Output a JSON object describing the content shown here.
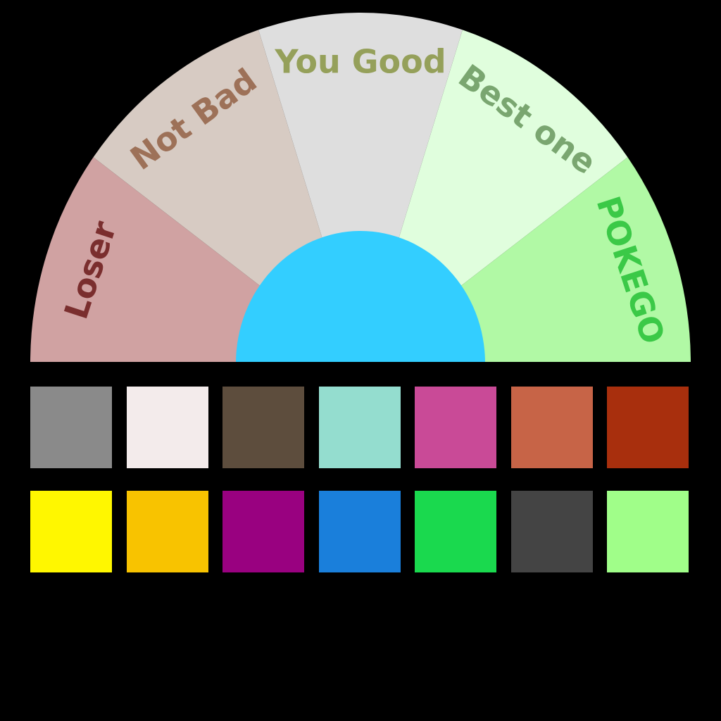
{
  "gauge": {
    "segments": [
      {
        "label": "Loser",
        "fill": "#d0a2a2",
        "text_color": "#7a2e2e"
      },
      {
        "label": "Not Bad",
        "fill": "#d7cbc3",
        "text_color": "#9d7158"
      },
      {
        "label": "You Good",
        "fill": "#dedede",
        "text_color": "#95a05a"
      },
      {
        "label": "Best one",
        "fill": "#e0fedd",
        "text_color": "#7aa670"
      },
      {
        "label": "POKEGO",
        "fill": "#b1f9a5",
        "text_color": "#3bc947"
      }
    ],
    "hub_color": "#33ceff"
  },
  "palette": {
    "rows": [
      [
        "#8a8a8a",
        "#f3ebeb",
        "#5d4d3d",
        "#94ddcf",
        "#c94a97",
        "#c76447",
        "#a82f0d"
      ],
      [
        "#fff700",
        "#f8c300",
        "#990180",
        "#1a7fdb",
        "#1ad94e",
        "#444444",
        "#a0fe89"
      ]
    ]
  }
}
